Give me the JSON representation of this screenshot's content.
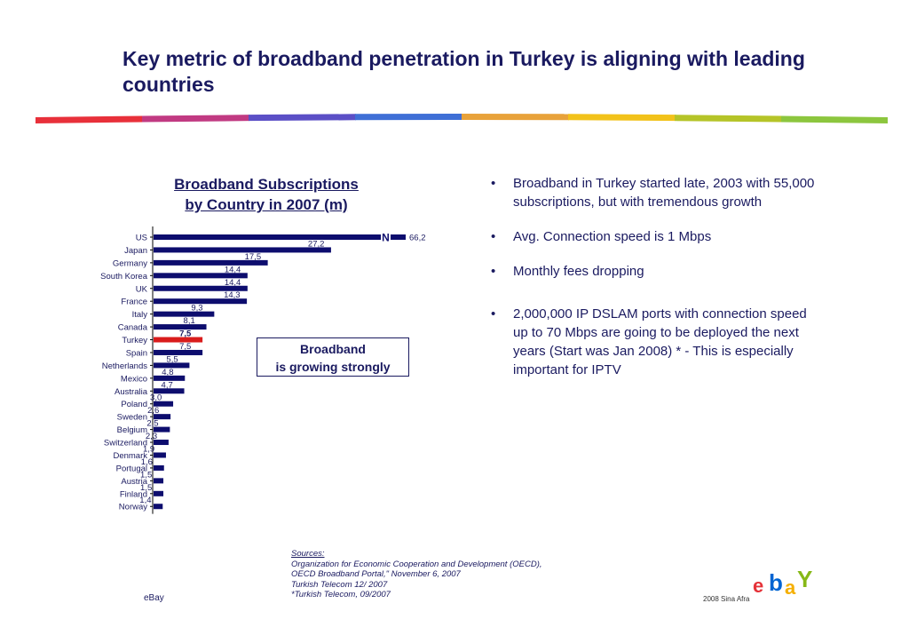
{
  "slide": {
    "title": "Key metric of broadband penetration in Turkey is aligning with leading countries"
  },
  "chart_heading": {
    "line1": "Broadband Subscriptions",
    "line2": "by Country in 2007 (m)"
  },
  "chart_data": {
    "type": "bar",
    "orientation": "horizontal",
    "title": "Broadband Subscriptions by Country in 2007 (m)",
    "categories": [
      "US",
      "Japan",
      "Germany",
      "South Korea",
      "UK",
      "France",
      "Italy",
      "Canada",
      "Turkey",
      "Spain",
      "Netherlands",
      "Mexico",
      "Australia",
      "Poland",
      "Sweden",
      "Belgium",
      "Switzerland",
      "Denmark",
      "Portugal",
      "Austria",
      "Finland",
      "Norway"
    ],
    "values": [
      66.2,
      27.2,
      17.5,
      14.4,
      14.4,
      14.3,
      9.3,
      8.1,
      7.5,
      7.5,
      5.5,
      4.8,
      4.7,
      3.0,
      2.6,
      2.5,
      2.3,
      1.9,
      1.6,
      1.5,
      1.5,
      1.4
    ],
    "value_labels": [
      "66,2",
      "27,2",
      "17,5",
      "14,4",
      "14,4",
      "14,3",
      "9,3",
      "8,1",
      "7,5",
      "7,5",
      "5,5",
      "4,8",
      "4,7",
      "3,0",
      "2,6",
      "2,5",
      "2,3",
      "1,9",
      "1,6",
      "1,5",
      "1,5",
      "1,4"
    ],
    "highlight": "Turkey",
    "axis_break_mark": "N",
    "colors": {
      "bar": "#0d0d6e",
      "highlight": "#d91c1c"
    },
    "xlabel": "",
    "ylabel": ""
  },
  "callout": {
    "line1": "Broadband",
    "line2": "is growing strongly"
  },
  "bullets": [
    "Broadband in Turkey started late, 2003 with 55,000 subscriptions, but with tremendous growth",
    "Avg. Connection speed is 1 Mbps",
    "Monthly fees dropping",
    "2,000,000 IP DSLAM ports with connection speed up to 70 Mbps are going to be deployed the next years (Start was Jan 2008) * - This is especially important for IPTV"
  ],
  "bullet_symbol": "•",
  "sources": {
    "heading": "Sources:",
    "lines": [
      "Organization for Economic Cooperation and Development (OECD),",
      "OECD Broadband Portal,\" November 6, 2007",
      "Turkish Telecom 12/ 2007",
      "*Turkish Telecom, 09/2007"
    ]
  },
  "footer": {
    "left": "eBay",
    "right": "2008 Sina Afra"
  },
  "logo": {
    "icon": "ebay-logo-icon",
    "letters": [
      "e",
      "b",
      "a",
      "Y"
    ],
    "colors": [
      "#e53238",
      "#0064d2",
      "#f5af02",
      "#86b817"
    ]
  },
  "ribbon_colors": [
    "#e8303a",
    "#c13a82",
    "#5b4fc6",
    "#3f6fd6",
    "#e8a23a",
    "#f2c21a",
    "#b5c428",
    "#8cc63e"
  ]
}
